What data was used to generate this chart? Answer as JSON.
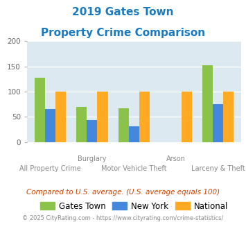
{
  "title_line1": "2019 Gates Town",
  "title_line2": "Property Crime Comparison",
  "categories": [
    "All Property Crime",
    "Burglary",
    "Motor Vehicle Theft",
    "Arson",
    "Larceny & Theft"
  ],
  "gates_town": [
    128,
    70,
    67,
    0,
    152
  ],
  "new_york": [
    65,
    43,
    31,
    0,
    75
  ],
  "national": [
    100,
    100,
    100,
    100,
    100
  ],
  "bar_color_gates": "#8bc34a",
  "bar_color_ny": "#4488dd",
  "bar_color_national": "#ffaa22",
  "ylim": [
    0,
    200
  ],
  "yticks": [
    0,
    50,
    100,
    150,
    200
  ],
  "plot_bg": "#dce9f0",
  "title_color": "#1a7abf",
  "xlabel_color": "#888888",
  "legend_labels": [
    "Gates Town",
    "New York",
    "National"
  ],
  "footnote1": "Compared to U.S. average. (U.S. average equals 100)",
  "footnote2": "© 2025 CityRating.com - https://www.cityrating.com/crime-statistics/",
  "footnote1_color": "#cc4400",
  "footnote2_color": "#888888",
  "top_labels": [
    "",
    "Burglary",
    "",
    "Arson",
    ""
  ],
  "bottom_labels": [
    "All Property Crime",
    "",
    "Motor Vehicle Theft",
    "",
    "Larceny & Theft"
  ]
}
